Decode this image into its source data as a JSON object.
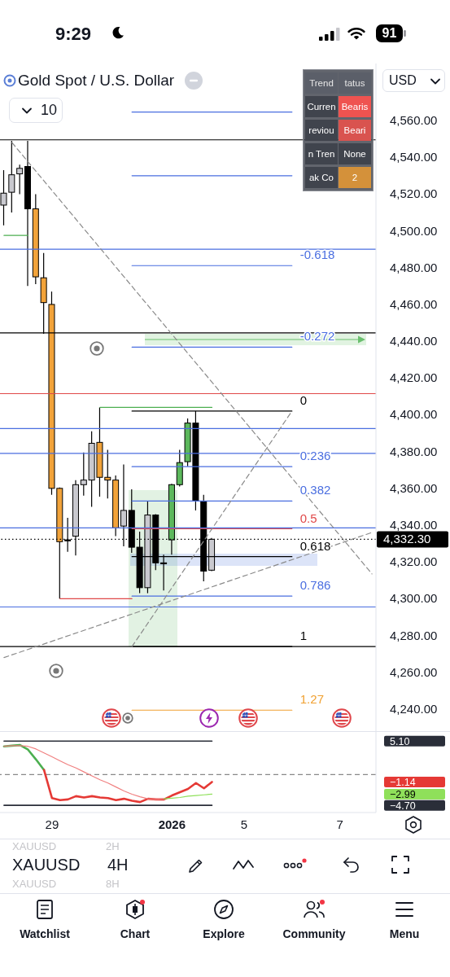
{
  "chart_data": [
    {
      "type": "candlestick",
      "title": "Gold Spot / U.S. Dollar",
      "categories": [
        null,
        null,
        null,
        null,
        null,
        null,
        "29",
        null,
        null,
        null,
        null,
        null,
        null,
        null,
        null,
        null,
        null,
        null,
        null,
        null,
        null,
        "2026",
        null,
        null,
        null,
        null,
        null,
        null,
        null,
        null,
        "5",
        null,
        null,
        null,
        null,
        null,
        null,
        null,
        null,
        null,
        null,
        null,
        "7",
        null,
        null,
        null,
        null
      ],
      "ohlc": [
        [
          4514,
          4533,
          4503,
          4520.5
        ],
        [
          4521,
          4549,
          4510,
          4530.5
        ],
        [
          4531,
          4536,
          4520,
          4534
        ],
        [
          4535,
          4549,
          4470,
          4512
        ],
        [
          4512,
          4520,
          4471,
          4475
        ],
        [
          4474.5,
          4488,
          4444,
          4461
        ],
        [
          4460,
          4467,
          4356.5,
          4360
        ],
        [
          4360,
          4360.5,
          4300,
          4331
        ],
        [
          4331.5,
          4344,
          4325.5,
          4332
        ],
        [
          4334,
          4364.5,
          4323.5,
          4362
        ],
        [
          4362,
          4379.5,
          4356,
          4364.5
        ],
        [
          4364.5,
          4391,
          4350,
          4384.5
        ],
        [
          4385,
          4404,
          4355.5,
          4366
        ],
        [
          4366,
          4381,
          4354.5,
          4364.5
        ],
        [
          4364.5,
          4367,
          4334,
          4338.5
        ],
        [
          4339.5,
          4373,
          4328.5,
          4348
        ],
        [
          4348,
          4359.5,
          4325,
          4328
        ],
        [
          4328,
          4336.5,
          4303,
          4306
        ],
        [
          4306,
          4353,
          4303,
          4345.5
        ],
        [
          4345.5,
          4346,
          4315.5,
          4319.5
        ],
        [
          4319.5,
          4324,
          4304.5,
          4319
        ],
        [
          4332,
          4362.5,
          4324,
          4362
        ],
        [
          4362,
          4381,
          4361,
          4374
        ],
        [
          4374.5,
          4398,
          4372,
          4395.5
        ],
        [
          4395.5,
          4402,
          4348,
          4353.5
        ],
        [
          4353,
          4356.5,
          4309.5,
          4315
        ],
        [
          4315.5,
          4333,
          4315,
          4332.3
        ],
        null,
        null,
        null,
        null,
        null,
        null,
        null,
        null,
        null,
        null,
        null,
        null,
        null,
        null,
        null,
        null,
        null,
        null,
        null,
        null
      ],
      "colors": [
        "#c9c9cf",
        "#c9c9cf",
        "#c9c9cf",
        "#000000",
        "#f2a33a",
        "#f2a33a",
        "#f2a33a",
        "#f2a33a",
        "#000000",
        "#c9c9cf",
        "#c9c9cf",
        "#c9c9cf",
        "#f2a33a",
        "#f2a33a",
        "#f2a33a",
        "#c9c9cf",
        "#000000",
        "#000000",
        "#c9c9cf",
        "#000000",
        "#000000",
        "#5cb85c",
        "#5cb85c",
        "#5cb85c",
        "#000000",
        "#000000",
        "#c9c9cf",
        null,
        null,
        null,
        null,
        null,
        null,
        null,
        null,
        null,
        null,
        null,
        null,
        null,
        null,
        null,
        null,
        null,
        null,
        null,
        null
      ],
      "series": [
        {
          "type": "line",
          "color": "#4a6ee0",
          "values": [
            null,
            null,
            null,
            null,
            null,
            null,
            null,
            null,
            null,
            null,
            null,
            null,
            null,
            null,
            null,
            null,
            4564.6,
            4564.6,
            4564.6,
            4564.6,
            4564.6,
            4564.6,
            4564.6,
            4564.6,
            4564.6,
            4564.6,
            4564.6,
            4564.6,
            4564.6,
            4564.6,
            4564.6,
            4564.6,
            4564.6,
            4564.6,
            4564.6,
            4564.6,
            4564.6,
            null,
            null,
            null,
            null,
            null,
            null,
            null,
            null,
            null,
            null
          ]
        },
        {
          "type": "line",
          "color": "#4a6ee0",
          "values": [
            null,
            null,
            null,
            null,
            null,
            null,
            null,
            null,
            null,
            null,
            null,
            null,
            null,
            null,
            null,
            null,
            4530,
            4530,
            4530,
            4530,
            4530,
            4530,
            4530,
            4530,
            4530,
            4530,
            4530,
            4530,
            4530,
            4530,
            4530,
            4530,
            4530,
            4530,
            4530,
            4530,
            4530,
            null,
            null,
            null,
            null,
            null,
            null,
            null,
            null,
            null,
            null
          ]
        },
        {
          "type": "line",
          "name": "-0.618",
          "color": "#4a6ee0",
          "values": [
            null,
            null,
            null,
            null,
            null,
            null,
            null,
            null,
            null,
            null,
            null,
            null,
            null,
            null,
            null,
            null,
            4481.1,
            4481.1,
            4481.1,
            4481.1,
            4481.1,
            4481.1,
            4481.1,
            4481.1,
            4481.1,
            4481.1,
            4481.1,
            4481.1,
            4481.1,
            4481.1,
            4481.1,
            4481.1,
            4481.1,
            4481.1,
            4481.1,
            4481.1,
            4481.1,
            null,
            null,
            null,
            null,
            null,
            null,
            null,
            null,
            null,
            null
          ]
        },
        {
          "type": "line",
          "name": "-0.272",
          "color": "#4a6ee0",
          "values": [
            null,
            null,
            null,
            null,
            null,
            null,
            null,
            null,
            null,
            null,
            null,
            null,
            null,
            null,
            null,
            null,
            4436.8,
            4436.8,
            4436.8,
            4436.8,
            4436.8,
            4436.8,
            4436.8,
            4436.8,
            4436.8,
            4436.8,
            4436.8,
            4436.8,
            4436.8,
            4436.8,
            4436.8,
            4436.8,
            4436.8,
            4436.8,
            4436.8,
            4436.8,
            4436.8,
            null,
            null,
            null,
            null,
            null,
            null,
            null,
            null,
            null,
            null
          ]
        },
        {
          "type": "line",
          "name": "0",
          "color": "#000000",
          "values": [
            null,
            null,
            null,
            null,
            null,
            null,
            null,
            null,
            null,
            null,
            null,
            null,
            null,
            null,
            null,
            null,
            4402,
            4402,
            4402,
            4402,
            4402,
            4402,
            4402,
            4402,
            4402,
            4402,
            4402,
            4402,
            4402,
            4402,
            4402,
            4402,
            4402,
            4402,
            4402,
            4402,
            4402,
            null,
            null,
            null,
            null,
            null,
            null,
            null,
            null,
            null,
            null
          ]
        },
        {
          "type": "line",
          "name": "0.236",
          "color": "#4a6ee0",
          "values": [
            null,
            null,
            null,
            null,
            null,
            null,
            null,
            null,
            null,
            null,
            null,
            null,
            null,
            null,
            null,
            null,
            4371.8,
            4371.8,
            4371.8,
            4371.8,
            4371.8,
            4371.8,
            4371.8,
            4371.8,
            4371.8,
            4371.8,
            4371.8,
            4371.8,
            4371.8,
            4371.8,
            4371.8,
            4371.8,
            4371.8,
            4371.8,
            4371.8,
            4371.8,
            4371.8,
            null,
            null,
            null,
            null,
            null,
            null,
            null,
            null,
            null,
            null
          ]
        },
        {
          "type": "line",
          "name": "0.382",
          "color": "#4a6ee0",
          "values": [
            null,
            null,
            null,
            null,
            null,
            null,
            null,
            null,
            null,
            null,
            null,
            null,
            null,
            null,
            null,
            null,
            4353.1,
            4353.1,
            4353.1,
            4353.1,
            4353.1,
            4353.1,
            4353.1,
            4353.1,
            4353.1,
            4353.1,
            4353.1,
            4353.1,
            4353.1,
            4353.1,
            4353.1,
            4353.1,
            4353.1,
            4353.1,
            4353.1,
            4353.1,
            4353.1,
            null,
            null,
            null,
            null,
            null,
            null,
            null,
            null,
            null,
            null
          ]
        },
        {
          "type": "line",
          "name": "0.5",
          "color": "#e04848",
          "values": [
            null,
            null,
            null,
            null,
            null,
            null,
            null,
            null,
            null,
            null,
            null,
            null,
            null,
            null,
            null,
            null,
            4338,
            4338,
            4338,
            4338,
            4338,
            4338,
            4338,
            4338,
            4338,
            4338,
            4338,
            4338,
            4338,
            4338,
            4338,
            4338,
            4338,
            4338,
            4338,
            4338,
            4338,
            null,
            null,
            null,
            null,
            null,
            null,
            null,
            null,
            null,
            null
          ]
        },
        {
          "type": "line",
          "name": "0.618",
          "color": "#000000",
          "values": [
            null,
            null,
            null,
            null,
            null,
            null,
            null,
            null,
            null,
            null,
            null,
            null,
            null,
            null,
            null,
            null,
            4322.9,
            4322.9,
            4322.9,
            4322.9,
            4322.9,
            4322.9,
            4322.9,
            4322.9,
            4322.9,
            4322.9,
            4322.9,
            4322.9,
            4322.9,
            4322.9,
            4322.9,
            4322.9,
            4322.9,
            4322.9,
            4322.9,
            4322.9,
            4322.9,
            null,
            null,
            null,
            null,
            null,
            null,
            null,
            null,
            null,
            null
          ]
        },
        {
          "type": "line",
          "name": "0.786",
          "color": "#4a6ee0",
          "values": [
            null,
            null,
            null,
            null,
            null,
            null,
            null,
            null,
            null,
            null,
            null,
            null,
            null,
            null,
            null,
            null,
            4301.4,
            4301.4,
            4301.4,
            4301.4,
            4301.4,
            4301.4,
            4301.4,
            4301.4,
            4301.4,
            4301.4,
            4301.4,
            4301.4,
            4301.4,
            4301.4,
            4301.4,
            4301.4,
            4301.4,
            4301.4,
            4301.4,
            4301.4,
            4301.4,
            null,
            null,
            null,
            null,
            null,
            null,
            null,
            null,
            null,
            null
          ]
        },
        {
          "type": "line",
          "name": "1",
          "color": "#000000",
          "values": [
            null,
            null,
            null,
            null,
            null,
            null,
            null,
            null,
            null,
            null,
            null,
            null,
            null,
            null,
            null,
            null,
            4274,
            4274,
            4274,
            4274,
            4274,
            4274,
            4274,
            4274,
            4274,
            4274,
            4274,
            4274,
            4274,
            4274,
            4274,
            4274,
            4274,
            4274,
            4274,
            4274,
            4274,
            null,
            null,
            null,
            null,
            null,
            null,
            null,
            null,
            null,
            null
          ]
        },
        {
          "type": "line",
          "name": "1.27",
          "color": "#f0a030",
          "values": [
            null,
            null,
            null,
            null,
            null,
            null,
            null,
            null,
            null,
            null,
            null,
            null,
            null,
            null,
            null,
            null,
            4239.4,
            4239.4,
            4239.4,
            4239.4,
            4239.4,
            4239.4,
            4239.4,
            4239.4,
            4239.4,
            4239.4,
            4239.4,
            4239.4,
            4239.4,
            4239.4,
            4239.4,
            4239.4,
            4239.4,
            4239.4,
            4239.4,
            4239.4,
            4239.4,
            null,
            null,
            null,
            null,
            null,
            null,
            null,
            null,
            null,
            null
          ]
        },
        {
          "type": "line",
          "color": "#e04848",
          "values": [
            null,
            null,
            null,
            null,
            null,
            null,
            null,
            4300,
            4300,
            4300,
            4300,
            4300,
            4300,
            4300,
            4300,
            4300,
            4300,
            null,
            null,
            null,
            null,
            null,
            null,
            null,
            null,
            null,
            null,
            null,
            null,
            null,
            null,
            null,
            null,
            null,
            null,
            null,
            null,
            null,
            null,
            null,
            null,
            null,
            null,
            null,
            null,
            null,
            null
          ]
        },
        {
          "type": "line",
          "color": "#4caf50",
          "values": [
            null,
            null,
            null,
            null,
            null,
            null,
            null,
            null,
            null,
            null,
            null,
            null,
            4404,
            4404,
            4404,
            4404,
            4404,
            4404,
            4404,
            4404,
            4404,
            4404,
            4404,
            4404,
            4404,
            4404,
            4404,
            null,
            null,
            null,
            null,
            null,
            null,
            null,
            null,
            null,
            null,
            null,
            null,
            null,
            null,
            null,
            null,
            null,
            null,
            null,
            null
          ]
        },
        {
          "type": "line",
          "color": "#4caf50",
          "values": [
            4497.5,
            4497.5,
            4497.5,
            4497.5,
            null,
            null,
            null,
            null,
            null,
            null,
            null,
            null,
            null,
            null,
            null,
            null,
            null,
            null,
            null,
            null,
            null,
            null,
            null,
            null,
            null,
            null,
            null,
            null,
            null,
            null,
            null,
            null,
            null,
            null,
            null,
            null,
            null,
            null,
            null,
            null,
            null,
            null,
            null,
            null,
            null,
            null,
            null
          ]
        },
        {
          "type": "line",
          "color": "#8a8a8a",
          "line_style": "dashed",
          "values": [
            null,
            4548,
            null,
            null,
            null,
            null,
            null,
            null,
            null,
            null,
            null,
            null,
            null,
            null,
            null,
            null,
            null,
            null,
            null,
            null,
            null,
            null,
            null,
            null,
            null,
            null,
            null,
            null,
            null,
            null,
            null,
            null,
            null,
            null,
            null,
            null,
            null,
            null,
            null,
            null,
            null,
            null,
            null,
            null,
            null,
            null,
            4313.5
          ]
        },
        {
          "type": "line",
          "color": "#8a8a8a",
          "line_style": "dashed",
          "values": [
            4268,
            null,
            null,
            null,
            null,
            null,
            null,
            null,
            null,
            null,
            null,
            null,
            null,
            null,
            null,
            null,
            null,
            null,
            null,
            null,
            null,
            null,
            null,
            null,
            null,
            null,
            null,
            null,
            null,
            null,
            null,
            null,
            null,
            null,
            null,
            null,
            null,
            null,
            null,
            null,
            null,
            null,
            null,
            null,
            null,
            null,
            4336
          ]
        },
        {
          "type": "line",
          "color": "#8a8a8a",
          "line_style": "dashed",
          "values": [
            null,
            null,
            null,
            null,
            null,
            null,
            null,
            null,
            null,
            null,
            null,
            null,
            null,
            null,
            null,
            null,
            4274,
            null,
            null,
            null,
            null,
            null,
            null,
            null,
            null,
            null,
            null,
            null,
            null,
            null,
            null,
            null,
            null,
            null,
            null,
            null,
            4402,
            null,
            null,
            null,
            null,
            null,
            null,
            null,
            null,
            null,
            null
          ]
        }
      ],
      "ylim": [
        4228,
        4591
      ],
      "yticks": [
        {
          "value": 4240,
          "label": "4,240.00"
        },
        {
          "value": 4260,
          "label": "4,260.00"
        },
        {
          "value": 4280,
          "label": "4,280.00"
        },
        {
          "value": 4300,
          "label": "4,300.00"
        },
        {
          "value": 4320,
          "label": "4,320.00"
        },
        {
          "value": 4340,
          "label": "4,340.00"
        },
        {
          "value": 4360,
          "label": "4,360.00"
        },
        {
          "value": 4380,
          "label": "4,380.00"
        },
        {
          "value": 4400,
          "label": "4,400.00"
        },
        {
          "value": 4420,
          "label": "4,420.00"
        },
        {
          "value": 4440,
          "label": "4,440.00"
        },
        {
          "value": 4460,
          "label": "4,460.00"
        },
        {
          "value": 4480,
          "label": "4,480.00"
        },
        {
          "value": 4500,
          "label": "4,500.00"
        },
        {
          "value": 4520,
          "label": "4,520.00"
        },
        {
          "value": 4540,
          "label": "4,540.00"
        },
        {
          "value": 4560,
          "label": "4,560.00"
        }
      ],
      "ref_lines": [
        {
          "axis": "y",
          "value": 4549.5,
          "color": "#000000"
        },
        {
          "axis": "y",
          "value": 4490,
          "color": "#4a6ee0"
        },
        {
          "axis": "y",
          "value": 4444.5,
          "color": "#000000"
        },
        {
          "axis": "y",
          "value": 4411.5,
          "color": "#e04848"
        },
        {
          "axis": "y",
          "value": 4392.5,
          "color": "#4a6ee0"
        },
        {
          "axis": "y",
          "value": 4379,
          "color": "#4a6ee0"
        },
        {
          "axis": "y",
          "value": 4338.5,
          "color": "#4a6ee0"
        },
        {
          "axis": "y",
          "value": 4295.5,
          "color": "#4a6ee0"
        },
        {
          "axis": "y",
          "value": 4274,
          "color": "#000000"
        },
        {
          "axis": "y",
          "value": 4332.3,
          "label": "4,332.30",
          "color": "#000000",
          "line_style": "dotted"
        }
      ],
      "tick_labels": "y",
      "annotations": [
        "9:29",
        "91",
        "10",
        "USD",
        "Trend",
        "tatus",
        "Curren",
        "Bearis",
        "reviou",
        "Beari",
        "n Tren",
        "None",
        "ak Co",
        "2",
        "XAUUSD",
        "2H",
        "XAUUSD",
        "4H",
        "XAUUSD",
        "8H",
        "Watchlist",
        "Chart",
        "Explore",
        "Community",
        "Menu"
      ]
    },
    {
      "type": "line",
      "categories": [
        null,
        null,
        null,
        null,
        null,
        null,
        "29",
        null,
        null,
        null,
        null,
        null,
        null,
        null,
        null,
        null,
        null,
        null,
        null,
        null,
        null,
        "2026",
        null,
        null,
        null,
        null,
        null,
        null,
        null,
        null,
        "5",
        null,
        null,
        null,
        null,
        null,
        null,
        null,
        null,
        null,
        null,
        null,
        "7",
        null,
        null,
        null,
        null
      ],
      "series": [
        {
          "color": "#4caf50",
          "values": [
            4.3,
            4.4,
            4.5,
            3.8,
            2.3,
            0.7,
            null,
            null,
            null,
            null,
            null,
            null,
            null,
            null,
            null,
            null,
            null,
            null,
            null,
            null,
            null,
            null,
            null,
            null,
            null,
            null,
            null,
            null,
            null,
            null,
            null,
            null,
            null,
            null,
            null,
            null,
            null,
            null,
            null,
            null,
            null,
            null,
            null,
            null,
            null,
            null,
            null
          ]
        },
        {
          "color": "#e53935",
          "values": [
            null,
            null,
            null,
            null,
            null,
            0.7,
            -3.6,
            -3.9,
            -3.8,
            -3.3,
            -3.5,
            -3.3,
            -3.5,
            -3.6,
            -3.9,
            -3.7,
            -4.0,
            -4.2,
            -3.7,
            -3.8,
            -3.8,
            -3.2,
            -2.7,
            -2.2,
            -1.3,
            -2.1,
            -1.14,
            null,
            null,
            null,
            null,
            null,
            null,
            null,
            null,
            null,
            null,
            null,
            null,
            null,
            null,
            null,
            null,
            null,
            null,
            null,
            null
          ]
        },
        {
          "color": "#f08080",
          "values": [
            4.3,
            4.4,
            4.4,
            4.3,
            3.9,
            3.3,
            2.7,
            2.1,
            1.5,
            1.0,
            0.4,
            -0.2,
            -0.8,
            -1.3,
            -1.9,
            -2.5,
            -3.0,
            -3.4,
            -3.7,
            -3.8,
            -3.7,
            null,
            null,
            null,
            null,
            null,
            null,
            null,
            null,
            null,
            null,
            null,
            null,
            null,
            null,
            null,
            null,
            null,
            null,
            null,
            null,
            null,
            null,
            null,
            null,
            null,
            null
          ]
        },
        {
          "color": "#8fe05a",
          "values": [
            null,
            null,
            null,
            null,
            null,
            null,
            null,
            null,
            null,
            null,
            null,
            null,
            null,
            null,
            null,
            null,
            null,
            null,
            null,
            null,
            -3.7,
            -3.6,
            -3.5,
            -3.3,
            -3.2,
            -3.1,
            -2.99,
            null,
            null,
            null,
            null,
            null,
            null,
            null,
            null,
            null,
            null,
            null,
            null,
            null,
            null,
            null,
            null,
            null,
            null,
            null,
            null
          ]
        },
        {
          "color": "#2a2e39",
          "values": [
            5.1,
            5.1,
            5.1,
            5.1,
            5.1,
            5.1,
            5.1,
            5.1,
            5.1,
            5.1,
            5.1,
            5.1,
            5.1,
            5.1,
            5.1,
            5.1,
            5.1,
            5.1,
            5.1,
            5.1,
            5.1,
            5.1,
            5.1,
            5.1,
            5.1,
            5.1,
            5.1,
            null,
            null,
            null,
            null,
            null,
            null,
            null,
            null,
            null,
            null,
            null,
            null,
            null,
            null,
            null,
            null,
            null,
            null,
            null,
            null
          ]
        },
        {
          "color": "#2a2e39",
          "values": [
            -4.7,
            -4.7,
            -4.7,
            -4.7,
            -4.7,
            -4.7,
            -4.7,
            -4.7,
            -4.7,
            -4.7,
            -4.7,
            -4.7,
            -4.7,
            -4.7,
            -4.7,
            -4.7,
            -4.7,
            -4.7,
            -4.7,
            -4.7,
            -4.7,
            -4.7,
            -4.7,
            -4.7,
            -4.7,
            -4.7,
            -4.7,
            null,
            null,
            null,
            null,
            null,
            null,
            null,
            null,
            null,
            null,
            null,
            null,
            null,
            null,
            null,
            null,
            null,
            null,
            null,
            null
          ]
        }
      ],
      "ylim": [
        -5.8,
        6.5
      ],
      "yticks": [
        {
          "value": 5.1,
          "label": "5.10"
        },
        {
          "value": -1.14,
          "label": "−1.14"
        },
        {
          "value": -2.99,
          "label": "−2.99"
        },
        {
          "value": -4.7,
          "label": "−4.70"
        }
      ],
      "ref_lines": [
        {
          "axis": "y",
          "value": 0,
          "color": "#888888",
          "line_style": "dashed"
        }
      ]
    }
  ]
}
